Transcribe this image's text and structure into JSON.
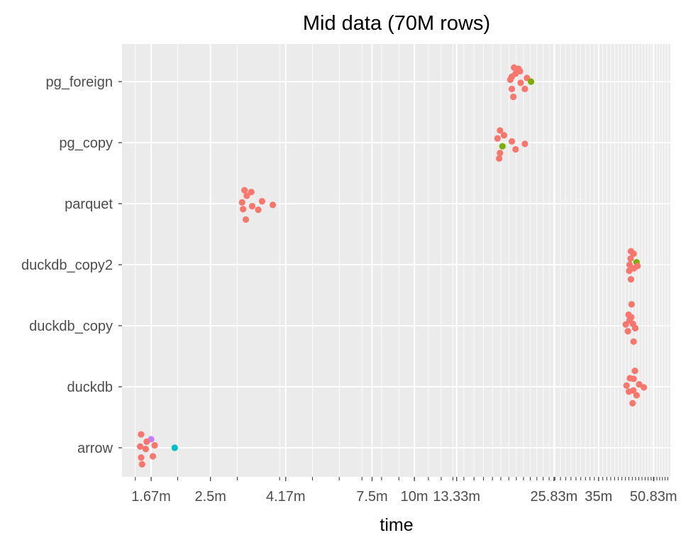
{
  "chart_data": {
    "type": "scatter",
    "title": "Mid data (70M rows)",
    "xlabel": "time",
    "ylabel": "",
    "x_scale": "log",
    "x_unit": "minutes",
    "xlim": [
      1.37,
      57.0
    ],
    "grid": true,
    "legend": "none",
    "background": "#ebebeb",
    "grid_color": "#ffffff",
    "default_color": "#f8766d",
    "categories": [
      "pg_foreign",
      "pg_copy",
      "parquet",
      "duckdb_copy2",
      "duckdb_copy",
      "duckdb",
      "arrow"
    ],
    "x_ticks": [
      {
        "value": 1.67,
        "label": "1.67m"
      },
      {
        "value": 2.5,
        "label": "2.5m"
      },
      {
        "value": 4.17,
        "label": "4.17m"
      },
      {
        "value": 7.5,
        "label": "7.5m"
      },
      {
        "value": 10,
        "label": "10m"
      },
      {
        "value": 13.33,
        "label": "13.33m"
      },
      {
        "value": 25.83,
        "label": "25.83m"
      },
      {
        "value": 35,
        "label": "35m"
      },
      {
        "value": 50.83,
        "label": "50.83m"
      }
    ],
    "series": [
      {
        "category": "pg_foreign",
        "points": [
          {
            "x": 19.7,
            "dy": 0.23
          },
          {
            "x": 20.3,
            "dy": 0.21
          },
          {
            "x": 20.5,
            "dy": 0.17
          },
          {
            "x": 19.9,
            "dy": 0.13
          },
          {
            "x": 19.4,
            "dy": 0.08
          },
          {
            "x": 21.5,
            "dy": 0.06
          },
          {
            "x": 19.2,
            "dy": 0.03
          },
          {
            "x": 20.6,
            "dy": -0.02
          },
          {
            "x": 22.1,
            "dy": 0.0,
            "color": "#7cae00"
          },
          {
            "x": 21.2,
            "dy": -0.12
          },
          {
            "x": 19.4,
            "dy": -0.12
          },
          {
            "x": 19.6,
            "dy": -0.25
          }
        ]
      },
      {
        "category": "pg_copy",
        "points": [
          {
            "x": 17.9,
            "dy": 0.2
          },
          {
            "x": 18.4,
            "dy": 0.12
          },
          {
            "x": 17.6,
            "dy": 0.07
          },
          {
            "x": 19.4,
            "dy": 0.02
          },
          {
            "x": 21.2,
            "dy": -0.02
          },
          {
            "x": 18.2,
            "dy": -0.06,
            "color": "#7cae00"
          },
          {
            "x": 19.9,
            "dy": -0.11
          },
          {
            "x": 17.9,
            "dy": -0.17
          },
          {
            "x": 17.8,
            "dy": -0.26
          }
        ]
      },
      {
        "category": "parquet",
        "points": [
          {
            "x": 3.15,
            "dy": 0.22
          },
          {
            "x": 3.3,
            "dy": 0.19
          },
          {
            "x": 3.2,
            "dy": 0.13
          },
          {
            "x": 3.55,
            "dy": 0.04
          },
          {
            "x": 3.1,
            "dy": 0.02
          },
          {
            "x": 3.82,
            "dy": -0.02
          },
          {
            "x": 3.32,
            "dy": -0.04
          },
          {
            "x": 3.12,
            "dy": -0.09
          },
          {
            "x": 3.46,
            "dy": -0.1
          },
          {
            "x": 3.18,
            "dy": -0.26
          }
        ]
      },
      {
        "category": "duckdb_copy2",
        "points": [
          {
            "x": 43.6,
            "dy": 0.22
          },
          {
            "x": 44.4,
            "dy": 0.18
          },
          {
            "x": 43.5,
            "dy": 0.1
          },
          {
            "x": 45.3,
            "dy": 0.04,
            "color": "#7cae00"
          },
          {
            "x": 43.2,
            "dy": 0.0
          },
          {
            "x": 45.6,
            "dy": -0.02
          },
          {
            "x": 44.5,
            "dy": -0.06
          },
          {
            "x": 43.1,
            "dy": -0.1
          },
          {
            "x": 43.6,
            "dy": -0.24
          }
        ]
      },
      {
        "category": "duckdb_copy",
        "points": [
          {
            "x": 43.8,
            "dy": 0.35
          },
          {
            "x": 42.9,
            "dy": 0.18
          },
          {
            "x": 43.7,
            "dy": 0.14
          },
          {
            "x": 43.2,
            "dy": 0.09
          },
          {
            "x": 44.2,
            "dy": 0.03
          },
          {
            "x": 42.1,
            "dy": 0.02
          },
          {
            "x": 44.9,
            "dy": -0.04
          },
          {
            "x": 42.7,
            "dy": -0.09
          },
          {
            "x": 44.4,
            "dy": -0.26
          }
        ]
      },
      {
        "category": "duckdb",
        "points": [
          {
            "x": 44.8,
            "dy": 0.26
          },
          {
            "x": 43.3,
            "dy": 0.14
          },
          {
            "x": 44.4,
            "dy": 0.13
          },
          {
            "x": 42.3,
            "dy": 0.02
          },
          {
            "x": 46.1,
            "dy": 0.04
          },
          {
            "x": 47.6,
            "dy": -0.01
          },
          {
            "x": 43.0,
            "dy": -0.08
          },
          {
            "x": 44.3,
            "dy": -0.06
          },
          {
            "x": 45.3,
            "dy": -0.14
          },
          {
            "x": 44.1,
            "dy": -0.27
          }
        ]
      },
      {
        "category": "arrow",
        "points": [
          {
            "x": 1.56,
            "dy": 0.22
          },
          {
            "x": 1.67,
            "dy": 0.14,
            "color": "#c77cff"
          },
          {
            "x": 1.62,
            "dy": 0.1
          },
          {
            "x": 1.71,
            "dy": 0.04
          },
          {
            "x": 1.55,
            "dy": 0.02
          },
          {
            "x": 1.61,
            "dy": -0.02
          },
          {
            "x": 1.96,
            "dy": 0.0,
            "color": "#00bfc4"
          },
          {
            "x": 1.69,
            "dy": -0.14
          },
          {
            "x": 1.56,
            "dy": -0.16
          },
          {
            "x": 1.57,
            "dy": -0.27
          }
        ]
      }
    ]
  }
}
